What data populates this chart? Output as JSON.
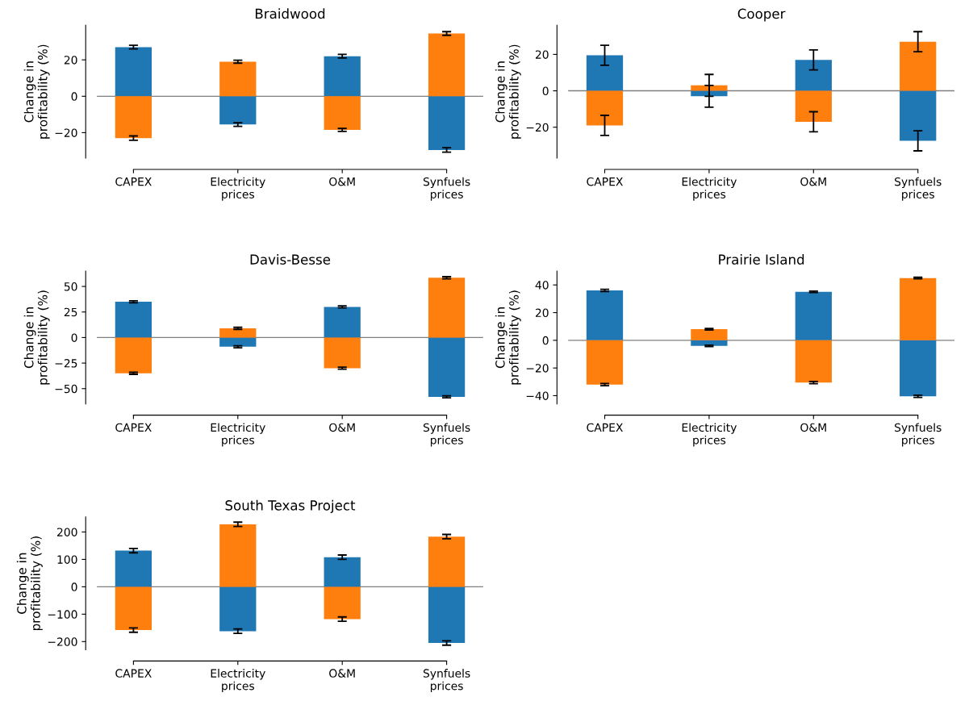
{
  "chart_data": [
    {
      "type": "bar",
      "title": "Braidwood",
      "ylabel": "Change in\nprofitability (%)",
      "categories": [
        "CAPEX",
        "Electricity\nprices",
        "O&M",
        "Synfuels\nprices"
      ],
      "stacked": true,
      "ylim": [
        -34,
        39
      ],
      "yticks": [
        -20,
        0,
        20
      ],
      "ref_lines": [
        {
          "axis": "y",
          "value": 0,
          "color": "#808080"
        }
      ],
      "series": [
        {
          "color": "#1f77b4",
          "values": [
            27,
            -15.5,
            22,
            -29.5
          ],
          "errors": [
            1,
            1,
            1,
            1.2
          ]
        },
        {
          "color": "#ff7f0e",
          "values": [
            -23,
            19,
            -18.5,
            34.5
          ],
          "errors": [
            1.2,
            0.8,
            0.8,
            1
          ]
        }
      ]
    },
    {
      "type": "bar",
      "title": "Cooper",
      "ylabel": "Change in\nprofitability (%)",
      "categories": [
        "CAPEX",
        "Electricity\nprices",
        "O&M",
        "Synfuels\nprices"
      ],
      "stacked": true,
      "ylim": [
        -37,
        36
      ],
      "yticks": [
        -20,
        0,
        20
      ],
      "ref_lines": [
        {
          "axis": "y",
          "value": 0,
          "color": "#808080"
        }
      ],
      "series": [
        {
          "color": "#1f77b4",
          "values": [
            19.5,
            -3,
            17,
            -27.5
          ],
          "errors": [
            5.5,
            6,
            5.5,
            5.5
          ]
        },
        {
          "color": "#ff7f0e",
          "values": [
            -19,
            3,
            -17,
            27
          ],
          "errors": [
            5.5,
            6,
            5.5,
            5.5
          ]
        }
      ]
    },
    {
      "type": "bar",
      "title": "Davis-Besse",
      "ylabel": "Change in\nprofitability (%)",
      "categories": [
        "CAPEX",
        "Electricity\nprices",
        "O&M",
        "Synfuels\nprices"
      ],
      "stacked": true,
      "ylim": [
        -65,
        65
      ],
      "yticks": [
        -50,
        -25,
        0,
        25,
        50
      ],
      "ref_lines": [
        {
          "axis": "y",
          "value": 0,
          "color": "#808080"
        }
      ],
      "series": [
        {
          "color": "#1f77b4",
          "values": [
            35,
            -9,
            30,
            -58
          ],
          "errors": [
            1,
            1,
            1,
            1
          ]
        },
        {
          "color": "#ff7f0e",
          "values": [
            -35,
            9,
            -30,
            58.5
          ],
          "errors": [
            1,
            1,
            1,
            1
          ]
        }
      ]
    },
    {
      "type": "bar",
      "title": "Prairie Island",
      "ylabel": "Change in\nprofitability (%)",
      "categories": [
        "CAPEX",
        "Electricity\nprices",
        "O&M",
        "Synfuels\nprices"
      ],
      "stacked": true,
      "ylim": [
        -46,
        50
      ],
      "yticks": [
        -40,
        -20,
        0,
        20,
        40
      ],
      "ref_lines": [
        {
          "axis": "y",
          "value": 0,
          "color": "#808080"
        }
      ],
      "series": [
        {
          "color": "#1f77b4",
          "values": [
            36,
            -4,
            35,
            -40.5
          ],
          "errors": [
            0.8,
            0.5,
            0.5,
            0.8
          ]
        },
        {
          "color": "#ff7f0e",
          "values": [
            -32,
            8,
            -30.5,
            45
          ],
          "errors": [
            0.8,
            0.5,
            0.8,
            0.5
          ]
        }
      ]
    },
    {
      "type": "bar",
      "title": "South Texas Project",
      "ylabel": "Change in\nprofitability (%)",
      "categories": [
        "CAPEX",
        "Electricity\nprices",
        "O&M",
        "Synfuels\nprices"
      ],
      "stacked": true,
      "ylim": [
        -230,
        255
      ],
      "yticks": [
        -200,
        -100,
        0,
        100,
        200
      ],
      "ref_lines": [
        {
          "axis": "y",
          "value": 0,
          "color": "#808080"
        }
      ],
      "series": [
        {
          "color": "#1f77b4",
          "values": [
            132,
            -162,
            108,
            -205
          ],
          "errors": [
            8,
            8,
            8,
            8
          ]
        },
        {
          "color": "#ff7f0e",
          "values": [
            -158,
            228,
            -118,
            183
          ],
          "errors": [
            8,
            8,
            8,
            8
          ]
        }
      ]
    }
  ]
}
